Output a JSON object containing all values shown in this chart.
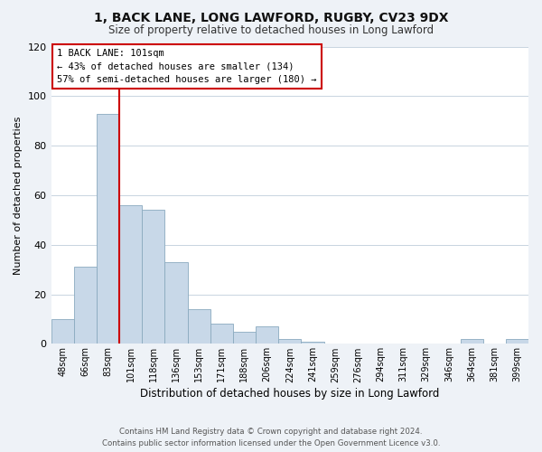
{
  "title": "1, BACK LANE, LONG LAWFORD, RUGBY, CV23 9DX",
  "subtitle": "Size of property relative to detached houses in Long Lawford",
  "xlabel": "Distribution of detached houses by size in Long Lawford",
  "ylabel": "Number of detached properties",
  "bar_labels": [
    "48sqm",
    "66sqm",
    "83sqm",
    "101sqm",
    "118sqm",
    "136sqm",
    "153sqm",
    "171sqm",
    "188sqm",
    "206sqm",
    "224sqm",
    "241sqm",
    "259sqm",
    "276sqm",
    "294sqm",
    "311sqm",
    "329sqm",
    "346sqm",
    "364sqm",
    "381sqm",
    "399sqm"
  ],
  "bar_values": [
    10,
    31,
    93,
    56,
    54,
    33,
    14,
    8,
    5,
    7,
    2,
    1,
    0,
    0,
    0,
    0,
    0,
    0,
    2,
    0,
    2
  ],
  "bar_color": "#c8d8e8",
  "bar_edge_color": "#8aaabf",
  "highlight_index": 3,
  "highlight_line_color": "#cc0000",
  "ylim": [
    0,
    120
  ],
  "yticks": [
    0,
    20,
    40,
    60,
    80,
    100,
    120
  ],
  "annotation_title": "1 BACK LANE: 101sqm",
  "annotation_line1": "← 43% of detached houses are smaller (134)",
  "annotation_line2": "57% of semi-detached houses are larger (180) →",
  "annotation_box_color": "#ffffff",
  "annotation_box_edge": "#cc0000",
  "footer_line1": "Contains HM Land Registry data © Crown copyright and database right 2024.",
  "footer_line2": "Contains public sector information licensed under the Open Government Licence v3.0.",
  "background_color": "#eef2f7",
  "plot_background_color": "#ffffff",
  "grid_color": "#c8d4e0"
}
